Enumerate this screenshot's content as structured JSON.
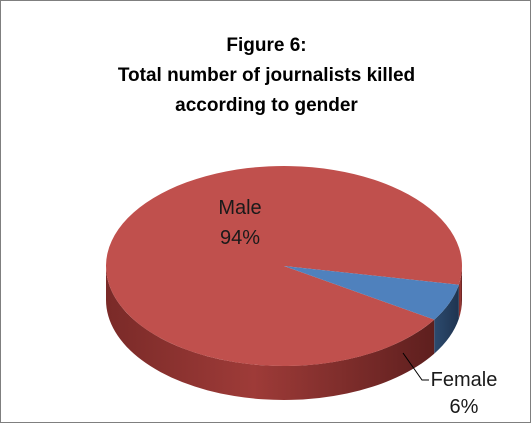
{
  "chart_data": {
    "type": "pie",
    "title_lines": [
      "Figure 6:",
      "Total number of journalists killed",
      "according to gender"
    ],
    "categories": [
      "Male",
      "Female"
    ],
    "values": [
      94,
      6
    ],
    "value_labels": [
      "94%",
      "6%"
    ],
    "colors": [
      "#c0504d",
      "#4f81bd"
    ],
    "style": "3d"
  }
}
